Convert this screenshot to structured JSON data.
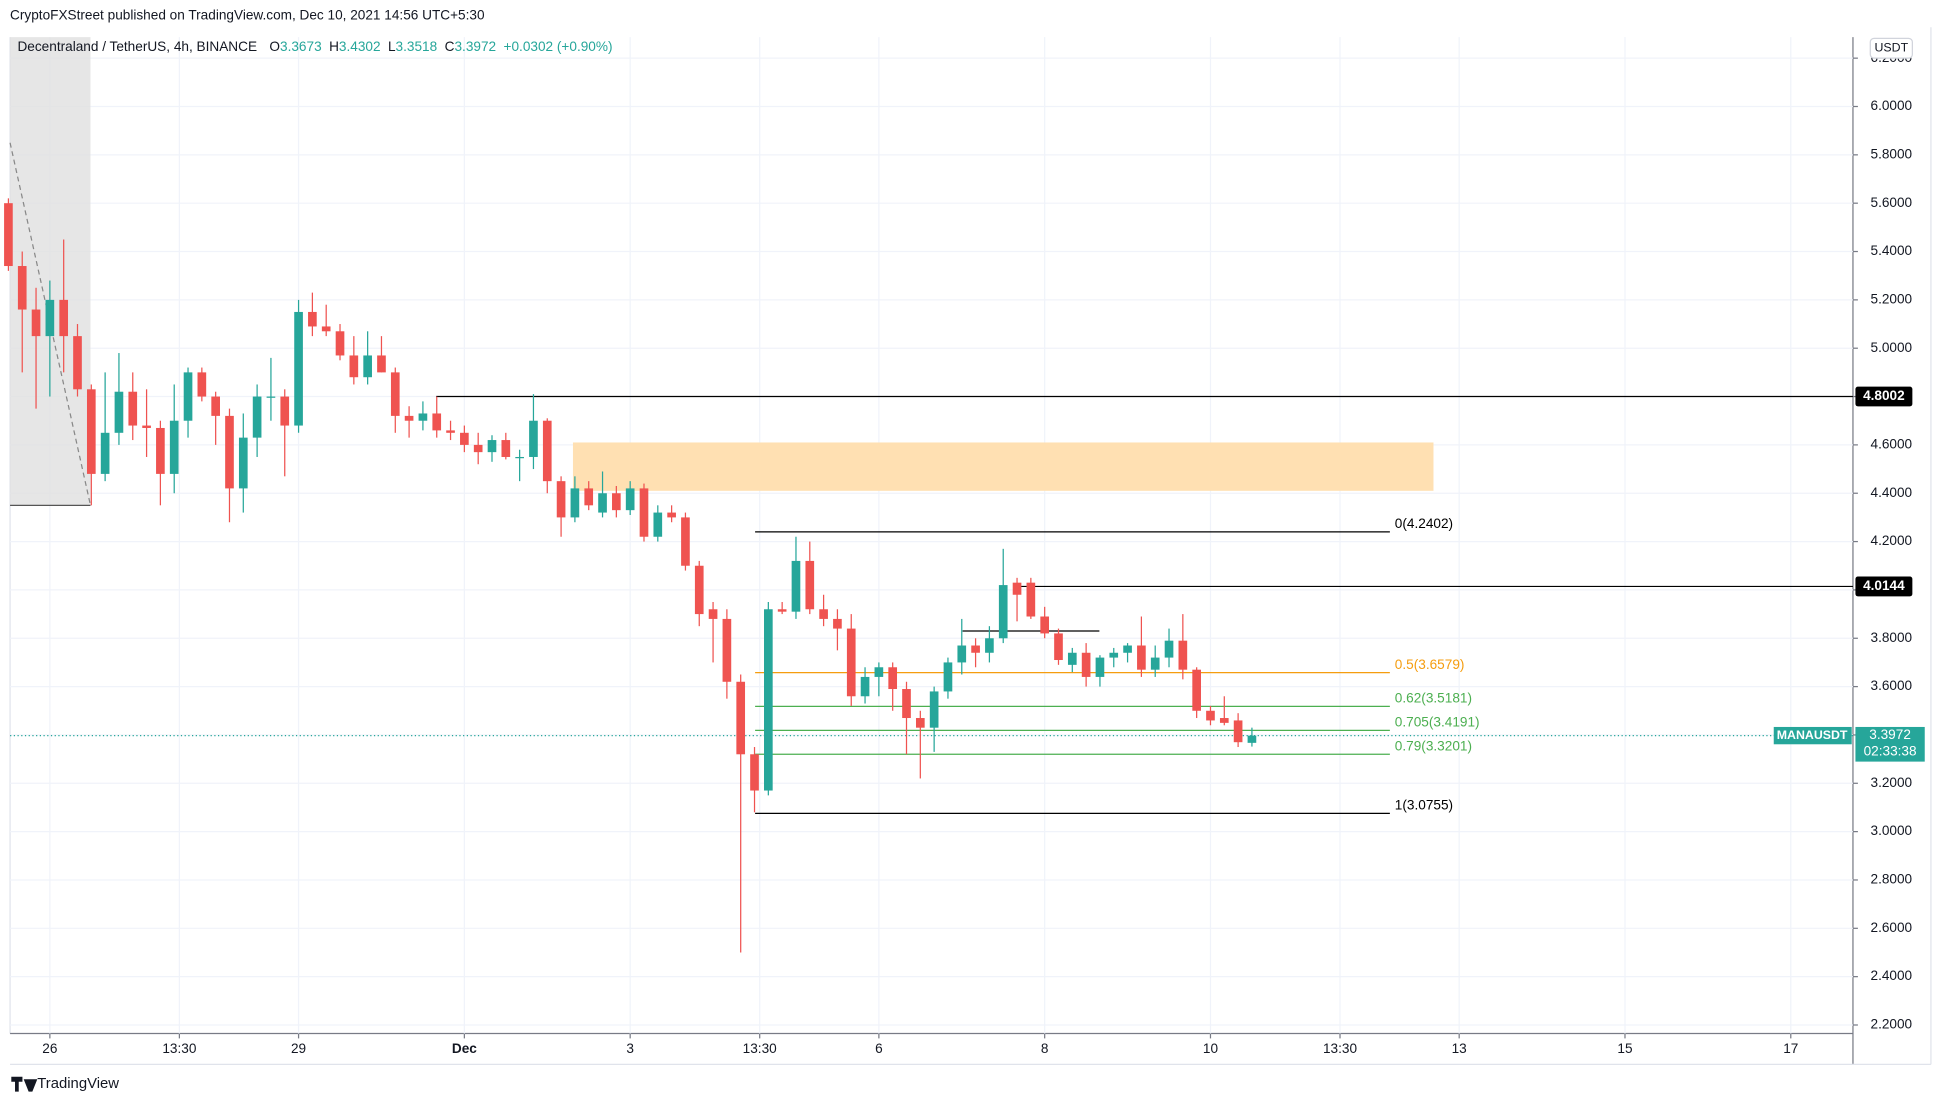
{
  "chart_data": {
    "type": "candlestick",
    "publisher": "CryptoFXStreet published on TradingView.com, Dec 10, 2021 14:56 UTC+5:30",
    "brand": "TradingView",
    "header": {
      "symbol": "Decentraland / TetherUS, 4h, BINANCE",
      "ohlc_labels": [
        "O",
        "H",
        "L",
        "C"
      ],
      "change": "+0.0302 (+0.90%)"
    },
    "y_unit": "USDT",
    "up_color": "#26a69a",
    "down_color": "#ef5350",
    "x": [
      25.5,
      25.6667,
      25.8333,
      26,
      26.1667,
      26.3333,
      26.5,
      26.6667,
      26.8333,
      27,
      27.1667,
      27.3333,
      27.5,
      27.6667,
      27.8333,
      28,
      28.1667,
      28.3333,
      28.5,
      28.6667,
      28.8333,
      29,
      29.1667,
      29.3333,
      29.5,
      29.6667,
      29.8333,
      30,
      30.1667,
      30.3333,
      30.5,
      30.6667,
      30.8333,
      31,
      31.1667,
      31.3333,
      31.5,
      31.6667,
      31.8333,
      32,
      32.1667,
      32.3333,
      32.5,
      32.6667,
      32.8333,
      33,
      33.1667,
      33.3333,
      33.5,
      33.6667,
      33.8333,
      34,
      34.1667,
      34.3333,
      34.5,
      34.6667,
      34.8333,
      35,
      35.1667,
      35.3333,
      35.5,
      35.6667,
      35.8333,
      36,
      36.1667,
      36.3333,
      36.5,
      36.6667,
      36.8333,
      37,
      37.1667,
      37.3333,
      37.5,
      37.6667,
      37.8333,
      38,
      38.1667,
      38.3333,
      38.5,
      38.6667,
      38.8333,
      39,
      39.1667,
      39.3333,
      39.5,
      39.6667,
      39.8333,
      40,
      40.1667,
      40.3333,
      40.5
    ],
    "open": [
      5.6,
      5.34,
      5.16,
      5.05,
      5.2,
      5.05,
      4.83,
      4.48,
      4.65,
      4.82,
      4.68,
      4.67,
      4.48,
      4.7,
      4.9,
      4.8,
      4.72,
      4.42,
      4.63,
      4.8,
      4.8,
      4.68,
      5.15,
      5.09,
      5.07,
      4.97,
      4.88,
      4.97,
      4.9,
      4.72,
      4.7,
      4.73,
      4.66,
      4.65,
      4.6,
      4.57,
      4.62,
      4.55,
      4.55,
      4.7,
      4.45,
      4.3,
      4.42,
      4.32,
      4.4,
      4.33,
      4.42,
      4.22,
      4.32,
      4.3,
      4.1,
      3.92,
      3.88,
      3.62,
      3.32,
      3.17,
      3.92,
      3.91,
      4.12,
      3.92,
      3.88,
      3.84,
      3.56,
      3.64,
      3.68,
      3.59,
      3.47,
      3.43,
      3.58,
      3.7,
      3.77,
      3.74,
      3.8,
      4.03,
      4.03,
      3.89,
      3.82,
      3.69,
      3.74,
      3.64,
      3.72,
      3.74,
      3.77,
      3.67,
      3.72,
      3.79,
      3.67,
      3.5,
      3.47,
      3.46,
      3.3673
    ],
    "high": [
      5.62,
      5.4,
      5.25,
      5.28,
      5.45,
      5.1,
      4.85,
      4.9,
      4.98,
      4.9,
      4.83,
      4.7,
      4.85,
      4.92,
      4.92,
      4.82,
      4.75,
      4.73,
      4.85,
      4.96,
      4.83,
      5.2,
      5.23,
      5.18,
      5.1,
      5.05,
      5.07,
      5.05,
      4.92,
      4.76,
      4.78,
      4.8,
      4.7,
      4.68,
      4.65,
      4.64,
      4.65,
      4.58,
      4.81,
      4.71,
      4.47,
      4.47,
      4.45,
      4.49,
      4.43,
      4.45,
      4.44,
      4.35,
      4.35,
      4.32,
      4.12,
      3.95,
      3.92,
      3.65,
      3.35,
      3.95,
      3.95,
      4.22,
      4.2,
      3.98,
      3.92,
      3.9,
      3.68,
      3.7,
      3.7,
      3.62,
      3.5,
      3.6,
      3.72,
      3.88,
      3.8,
      3.85,
      4.17,
      4.05,
      4.05,
      3.93,
      3.84,
      3.76,
      3.78,
      3.73,
      3.76,
      3.78,
      3.89,
      3.77,
      3.84,
      3.9,
      3.68,
      3.52,
      3.56,
      3.49,
      3.4302
    ],
    "low": [
      5.32,
      4.9,
      4.75,
      4.8,
      4.9,
      4.8,
      4.35,
      4.45,
      4.6,
      4.62,
      4.55,
      4.35,
      4.4,
      4.63,
      4.78,
      4.6,
      4.28,
      4.32,
      4.55,
      4.7,
      4.47,
      4.65,
      5.05,
      5.05,
      4.95,
      4.85,
      4.85,
      4.9,
      4.65,
      4.63,
      4.66,
      4.63,
      4.62,
      4.57,
      4.52,
      4.53,
      4.54,
      4.45,
      4.5,
      4.4,
      4.22,
      4.28,
      4.33,
      4.3,
      4.3,
      4.31,
      4.2,
      4.2,
      4.28,
      4.08,
      3.85,
      3.7,
      3.55,
      2.5,
      3.08,
      3.15,
      3.9,
      3.88,
      3.9,
      3.85,
      3.75,
      3.52,
      3.53,
      3.56,
      3.5,
      3.32,
      3.22,
      3.33,
      3.55,
      3.65,
      3.68,
      3.7,
      3.78,
      3.87,
      3.88,
      3.8,
      3.69,
      3.66,
      3.6,
      3.6,
      3.68,
      3.7,
      3.64,
      3.64,
      3.68,
      3.63,
      3.47,
      3.44,
      3.44,
      3.35,
      3.3518
    ],
    "close": [
      5.34,
      5.16,
      5.05,
      5.2,
      5.05,
      4.83,
      4.48,
      4.65,
      4.82,
      4.68,
      4.67,
      4.48,
      4.7,
      4.9,
      4.8,
      4.72,
      4.42,
      4.63,
      4.8,
      4.8,
      4.68,
      5.15,
      5.09,
      5.07,
      4.97,
      4.88,
      4.97,
      4.9,
      4.72,
      4.7,
      4.73,
      4.66,
      4.65,
      4.6,
      4.57,
      4.62,
      4.55,
      4.55,
      4.7,
      4.45,
      4.3,
      4.42,
      4.35,
      4.4,
      4.33,
      4.42,
      4.22,
      4.32,
      4.3,
      4.1,
      3.9,
      3.88,
      3.62,
      3.32,
      3.17,
      3.92,
      3.91,
      4.12,
      3.92,
      3.88,
      3.84,
      3.56,
      3.64,
      3.68,
      3.59,
      3.47,
      3.43,
      3.58,
      3.7,
      3.77,
      3.74,
      3.8,
      4.02,
      3.98,
      3.89,
      3.82,
      3.71,
      3.74,
      3.64,
      3.72,
      3.74,
      3.77,
      3.67,
      3.72,
      3.79,
      3.67,
      3.5,
      3.46,
      3.45,
      3.37,
      3.3972
    ],
    "xlim": [
      25.52,
      47.75
    ],
    "xticks": [
      {
        "value": 26,
        "label": "26"
      },
      {
        "value": 27.5625,
        "label": "13:30"
      },
      {
        "value": 29,
        "label": "29"
      },
      {
        "value": 31,
        "label": "Dec"
      },
      {
        "value": 33,
        "label": "3"
      },
      {
        "value": 34.5625,
        "label": "13:30"
      },
      {
        "value": 36,
        "label": "6"
      },
      {
        "value": 38,
        "label": "8"
      },
      {
        "value": 40,
        "label": "10"
      },
      {
        "value": 41.5625,
        "label": "13:30"
      },
      {
        "value": 43,
        "label": "13"
      },
      {
        "value": 45,
        "label": "15"
      },
      {
        "value": 47,
        "label": "17"
      }
    ],
    "ylim": [
      2.165,
      6.287
    ],
    "yticks": [
      {
        "value": 2.2,
        "label": "2.2000"
      },
      {
        "value": 2.4,
        "label": "2.4000"
      },
      {
        "value": 2.6,
        "label": "2.6000"
      },
      {
        "value": 2.8,
        "label": "2.8000"
      },
      {
        "value": 3.0,
        "label": "3.0000"
      },
      {
        "value": 3.2,
        "label": "3.2000"
      },
      {
        "value": 3.4,
        "label": "3.4000"
      },
      {
        "value": 3.6,
        "label": "3.6000"
      },
      {
        "value": 3.8,
        "label": "3.8000"
      },
      {
        "value": 4.0,
        "label": "4.0000"
      },
      {
        "value": 4.2,
        "label": "4.2000"
      },
      {
        "value": 4.4,
        "label": "4.4000"
      },
      {
        "value": 4.6,
        "label": "4.6000"
      },
      {
        "value": 4.8,
        "label": "4.8000"
      },
      {
        "value": 5.0,
        "label": "5.0000"
      },
      {
        "value": 5.2,
        "label": "5.2000"
      },
      {
        "value": 5.4,
        "label": "5.4000"
      },
      {
        "value": 5.6,
        "label": "5.6000"
      },
      {
        "value": 5.8,
        "label": "5.8000"
      },
      {
        "value": 6.0,
        "label": "6.0000"
      },
      {
        "value": 6.2,
        "label": "6.2000"
      }
    ],
    "grid": true,
    "levels": [
      {
        "value": 4.8002,
        "label": "4.8002",
        "x": 30.66
      },
      {
        "value": 4.0144,
        "label": "4.0144",
        "x": 37.64
      }
    ],
    "short_line": {
      "value": 3.83,
      "x": [
        37.01,
        38.66
      ]
    },
    "zone": {
      "y": [
        4.41,
        4.61
      ],
      "x": [
        32.31,
        42.69
      ],
      "color": "#ffe0b2"
    },
    "shade": {
      "x": [
        25.52,
        26.49
      ],
      "y": 4.35,
      "line": [
        5.85,
        4.35
      ]
    },
    "fib": {
      "x": [
        34.507,
        42.164
      ],
      "levels": [
        {
          "value": 4.2402,
          "label": "0(4.2402)",
          "color": "#000000"
        },
        {
          "value": 3.6579,
          "label": "0.5(3.6579)",
          "color": "#f59d0f"
        },
        {
          "value": 3.5181,
          "label": "0.62(3.5181)",
          "color": "#4caf50"
        },
        {
          "value": 3.4191,
          "label": "0.705(3.4191)",
          "color": "#4caf50"
        },
        {
          "value": 3.3201,
          "label": "0.79(3.3201)",
          "color": "#4caf50"
        },
        {
          "value": 3.0755,
          "label": "1(3.0755)",
          "color": "#000000"
        }
      ]
    },
    "current": {
      "symbol": "MANAUSDT",
      "countdown": "02:33:38"
    }
  }
}
